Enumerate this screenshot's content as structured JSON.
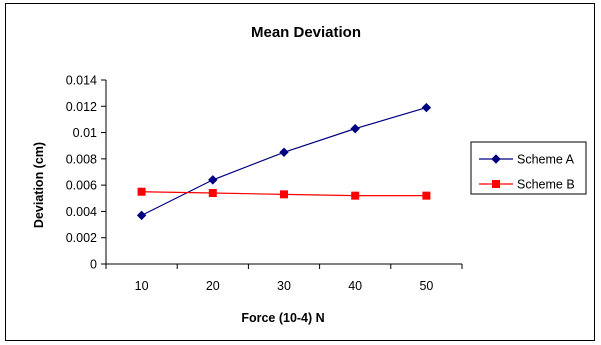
{
  "chart_data": {
    "type": "line",
    "title": "Mean Deviation",
    "xlabel": "Force (10-4) N",
    "ylabel": "Deviation (cm)",
    "categories": [
      "10",
      "20",
      "30",
      "40",
      "50"
    ],
    "ylim": [
      0,
      0.014
    ],
    "yticks": [
      "0",
      "0.002",
      "0.004",
      "0.006",
      "0.008",
      "0.01",
      "0.012",
      "0.014"
    ],
    "grid": false,
    "legend_position": "right",
    "series": [
      {
        "name": "Scheme A",
        "color": "#000080",
        "marker": "diamond",
        "values": [
          0.0037,
          0.0064,
          0.0085,
          0.0103,
          0.0119
        ]
      },
      {
        "name": "Scheme B",
        "color": "#ff0000",
        "marker": "square",
        "values": [
          0.0055,
          0.0054,
          0.0053,
          0.0052,
          0.0052
        ]
      }
    ]
  }
}
